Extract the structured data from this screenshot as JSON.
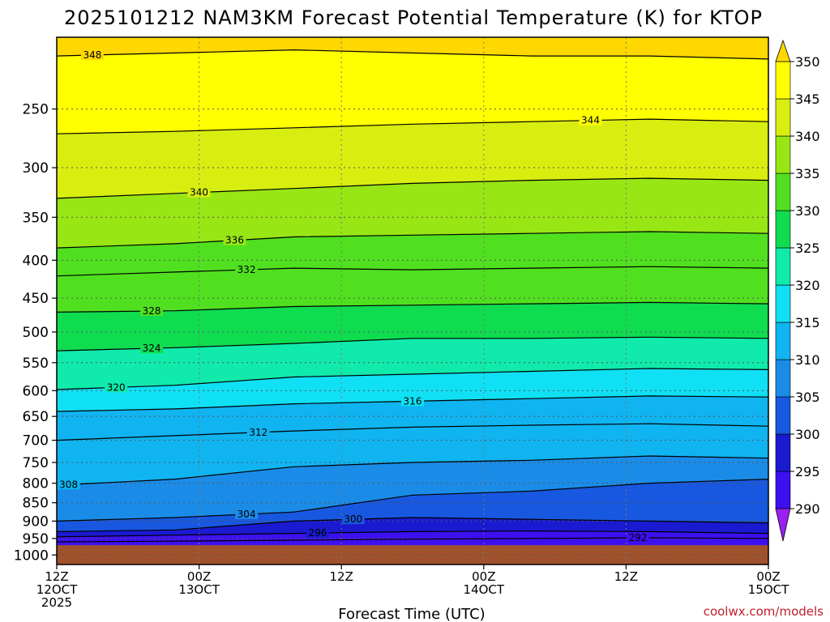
{
  "chart_data": {
    "type": "heatmap",
    "title": "2025101212 NAM3KM Forecast Potential Temperature (K) for KTOP",
    "xlabel": "Forecast Time (UTC)",
    "ylabel": "",
    "credit": "coolwx.com/models",
    "x_ticks": [
      {
        "hour": 0,
        "line1": "12Z",
        "line2": "12OCT",
        "line3": "2025"
      },
      {
        "hour": 12,
        "line1": "00Z",
        "line2": "13OCT",
        "line3": ""
      },
      {
        "hour": 24,
        "line1": "12Z",
        "line2": "",
        "line3": ""
      },
      {
        "hour": 36,
        "line1": "00Z",
        "line2": "14OCT",
        "line3": ""
      },
      {
        "hour": 48,
        "line1": "12Z",
        "line2": "",
        "line3": ""
      },
      {
        "hour": 60,
        "line1": "00Z",
        "line2": "15OCT",
        "line3": ""
      }
    ],
    "xlim": [
      0,
      60
    ],
    "y_ticks": [
      "250",
      "300",
      "350",
      "400",
      "450",
      "500",
      "550",
      "600",
      "650",
      "700",
      "750",
      "800",
      "850",
      "900",
      "950",
      "1000"
    ],
    "y_tick_values": [
      250,
      300,
      350,
      400,
      450,
      500,
      550,
      600,
      650,
      700,
      750,
      800,
      850,
      900,
      950,
      1000
    ],
    "ylim": [
      200,
      1030
    ],
    "y_scale": "log",
    "y_inverted": true,
    "grid": true,
    "colorbar": {
      "labels": [
        "350",
        "345",
        "340",
        "335",
        "330",
        "325",
        "320",
        "315",
        "310",
        "305",
        "300",
        "295",
        "290"
      ],
      "levels": [
        290,
        295,
        300,
        305,
        310,
        315,
        320,
        325,
        330,
        335,
        340,
        345,
        350
      ],
      "colors": [
        "#7a10e8",
        "#3c10f0",
        "#1a1ad0",
        "#1858e0",
        "#1a8ce8",
        "#10b4f0",
        "#10e0f4",
        "#10eaaa",
        "#10dc50",
        "#50e020",
        "#98e614",
        "#d8ee10",
        "#ffff00",
        "#ffd800"
      ],
      "above_color": "#ffd800",
      "below_color": "#9a20f0"
    },
    "ground_color": "#a0522d",
    "ground_top_pressure": 970,
    "contour_interval": 4,
    "isentropes": [
      {
        "theta": 292,
        "label": "292",
        "pressure": [
          960,
          958,
          955,
          952,
          950,
          948,
          950
        ],
        "label_hour": 49
      },
      {
        "theta": 296,
        "label": "296",
        "pressure": [
          945,
          940,
          935,
          930,
          928,
          930,
          935
        ],
        "label_hour": 22
      },
      {
        "theta": 300,
        "label": "300",
        "pressure": [
          930,
          925,
          900,
          890,
          895,
          900,
          905
        ],
        "label_hour": 25
      },
      {
        "theta": 304,
        "label": "304",
        "pressure": [
          900,
          890,
          875,
          830,
          820,
          800,
          790
        ],
        "label_hour": 16
      },
      {
        "theta": 308,
        "label": "308",
        "pressure": [
          805,
          790,
          760,
          750,
          745,
          735,
          740
        ],
        "label_hour": 1
      },
      {
        "theta": 312,
        "label": "312",
        "pressure": [
          700,
          690,
          680,
          672,
          668,
          665,
          670
        ],
        "label_hour": 17
      },
      {
        "theta": 316,
        "label": "316",
        "pressure": [
          640,
          635,
          625,
          620,
          615,
          610,
          612
        ],
        "label_hour": 30
      },
      {
        "theta": 320,
        "label": "320",
        "pressure": [
          598,
          590,
          575,
          570,
          565,
          560,
          562
        ],
        "label_hour": 5
      },
      {
        "theta": 324,
        "label": "324",
        "pressure": [
          530,
          525,
          518,
          510,
          510,
          508,
          510
        ],
        "label_hour": 8
      },
      {
        "theta": 328,
        "label": "328",
        "pressure": [
          470,
          468,
          462,
          460,
          458,
          456,
          458
        ],
        "label_hour": 8
      },
      {
        "theta": 332,
        "label": "332",
        "pressure": [
          420,
          415,
          410,
          412,
          410,
          408,
          410
        ],
        "label_hour": 16
      },
      {
        "theta": 336,
        "label": "336",
        "pressure": [
          385,
          380,
          372,
          370,
          368,
          366,
          368
        ],
        "label_hour": 15
      },
      {
        "theta": 340,
        "label": "340",
        "pressure": [
          330,
          325,
          320,
          315,
          312,
          310,
          312
        ],
        "label_hour": 12
      },
      {
        "theta": 344,
        "label": "344",
        "pressure": [
          270,
          268,
          265,
          262,
          260,
          258,
          260
        ],
        "label_hour": 45
      },
      {
        "theta": 348,
        "label": "348",
        "pressure": [
          212,
          210,
          208,
          210,
          212,
          212,
          214
        ],
        "label_hour": 3
      }
    ]
  }
}
